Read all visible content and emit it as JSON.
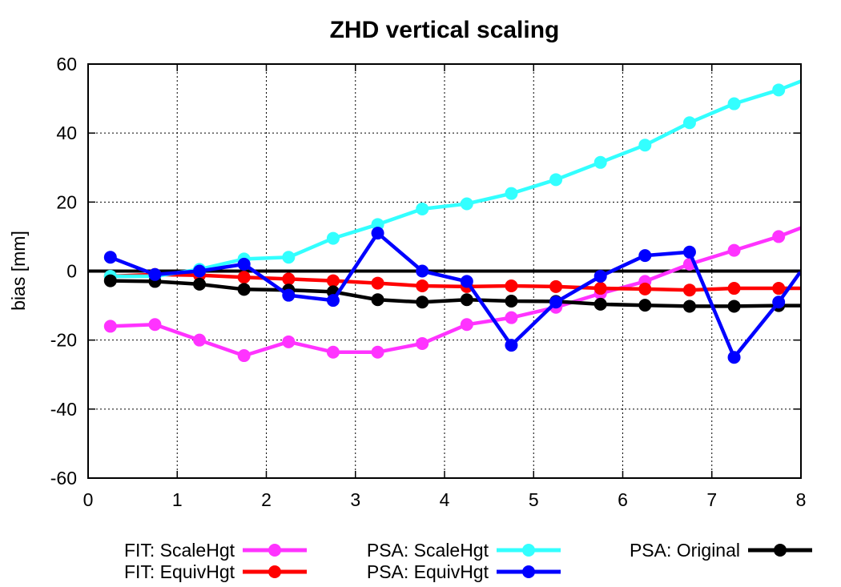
{
  "chart_data": {
    "type": "line",
    "title": "ZHD vertical scaling",
    "xlabel": "",
    "ylabel": "bias [mm]",
    "xlim": [
      0,
      8
    ],
    "ylim": [
      -60,
      60
    ],
    "xticks": [
      "0",
      "1",
      "2",
      "3",
      "4",
      "5",
      "6",
      "7",
      "8"
    ],
    "yticks": [
      "-60",
      "-40",
      "-20",
      "0",
      "20",
      "40",
      "60"
    ],
    "grid": true,
    "legend_position": "bottom",
    "series": [
      {
        "name": "FIT: ScaleHgt",
        "color": "#ff33ff",
        "x": [
          0.25,
          0.75,
          1.25,
          1.75,
          2.25,
          2.75,
          3.25,
          3.75,
          4.25,
          4.75,
          5.25,
          5.75,
          6.25,
          6.75,
          7.25,
          7.75,
          8
        ],
        "y": [
          -16,
          -15.5,
          -20,
          -24.5,
          -20.5,
          -23.5,
          -23.5,
          -21,
          -15.5,
          -13.5,
          -10.5,
          -6.5,
          -3,
          2,
          6,
          10,
          12.5
        ]
      },
      {
        "name": "FIT: EquivHgt",
        "color": "#ff0000",
        "x": [
          0.25,
          0.75,
          1.25,
          1.75,
          2.25,
          2.75,
          3.25,
          3.75,
          4.25,
          4.75,
          5.25,
          5.75,
          6.25,
          6.75,
          7.25,
          7.75,
          8
        ],
        "y": [
          -1.5,
          -1,
          -1.2,
          -1.8,
          -2.3,
          -2.8,
          -3.5,
          -4.3,
          -4.5,
          -4.3,
          -4.5,
          -5,
          -5.2,
          -5.5,
          -5,
          -5,
          -5
        ]
      },
      {
        "name": "PSA: ScaleHgt",
        "color": "#33ffff",
        "x": [
          0.25,
          0.75,
          1.25,
          1.75,
          2.25,
          2.75,
          3.25,
          3.75,
          4.25,
          4.75,
          5.25,
          5.75,
          6.25,
          6.75,
          7.25,
          7.75,
          8
        ],
        "y": [
          -1.5,
          -1.5,
          0.5,
          3.5,
          4,
          9.5,
          13.5,
          18,
          19.5,
          22.5,
          26.5,
          31.5,
          36.5,
          43,
          48.5,
          52.5,
          55
        ]
      },
      {
        "name": "PSA: EquivHgt",
        "color": "#0000ff",
        "x": [
          0.25,
          0.75,
          1.25,
          1.75,
          2.25,
          2.75,
          3.25,
          3.75,
          4.25,
          4.75,
          5.25,
          5.75,
          6.25,
          6.75,
          7.25,
          7.75,
          8
        ],
        "y": [
          4,
          -1,
          0,
          2,
          -7,
          -8.5,
          11,
          0,
          -3,
          -21.5,
          -9,
          -1.5,
          4.5,
          5.5,
          -25,
          -9,
          0
        ]
      },
      {
        "name": "PSA: Original",
        "color": "#000000",
        "x": [
          0.25,
          0.75,
          1.25,
          1.75,
          2.25,
          2.75,
          3.25,
          3.75,
          4.25,
          4.75,
          5.25,
          5.75,
          6.25,
          6.75,
          7.25,
          7.75,
          8
        ],
        "y": [
          -2.8,
          -3,
          -3.8,
          -5.3,
          -5.5,
          -6,
          -8.3,
          -9,
          -8.3,
          -8.7,
          -8.8,
          -9.6,
          -9.9,
          -10.2,
          -10.2,
          -10,
          -10
        ]
      }
    ],
    "zero_line": true
  }
}
